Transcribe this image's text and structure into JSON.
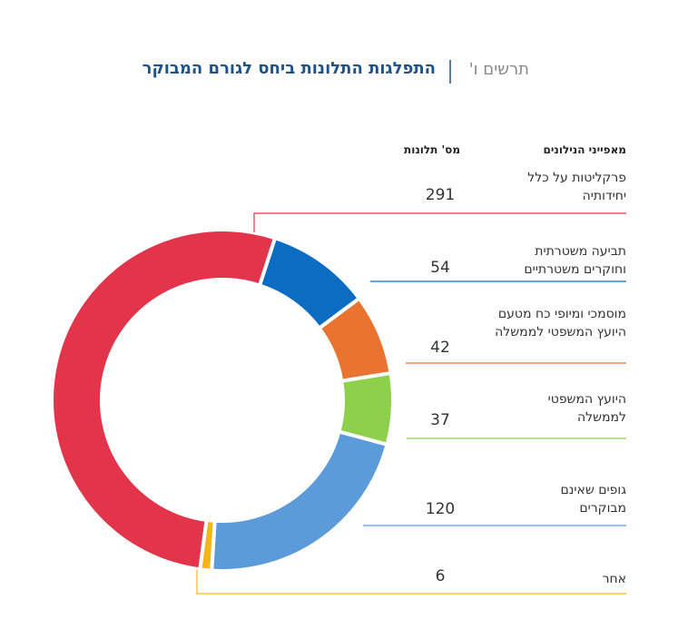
{
  "chart_data": {
    "type": "donut",
    "figure_label": "תרשים ו'",
    "title": "התפלגות התלונות ביחס לגורם המבוקר",
    "category_header": "מאפייני הנילונים",
    "value_header": "מס' תלונות",
    "categories": [
      "פרקליטות על כלל יחידותיה",
      "תביעה משטרתית וחוקרים משטרתיים",
      "מוסמכי ומיופי כח מטעם היועץ המשפטי לממשלה",
      "היועץ המשפטי לממשלה",
      "גופים שאינם מבוקרים",
      "אחר"
    ],
    "values": [
      291,
      54,
      42,
      37,
      120,
      6
    ],
    "colors": [
      "#e2344a",
      "#0b6cc1",
      "#e8742f",
      "#8ed04b",
      "#5b9bd9",
      "#f2b619"
    ]
  }
}
